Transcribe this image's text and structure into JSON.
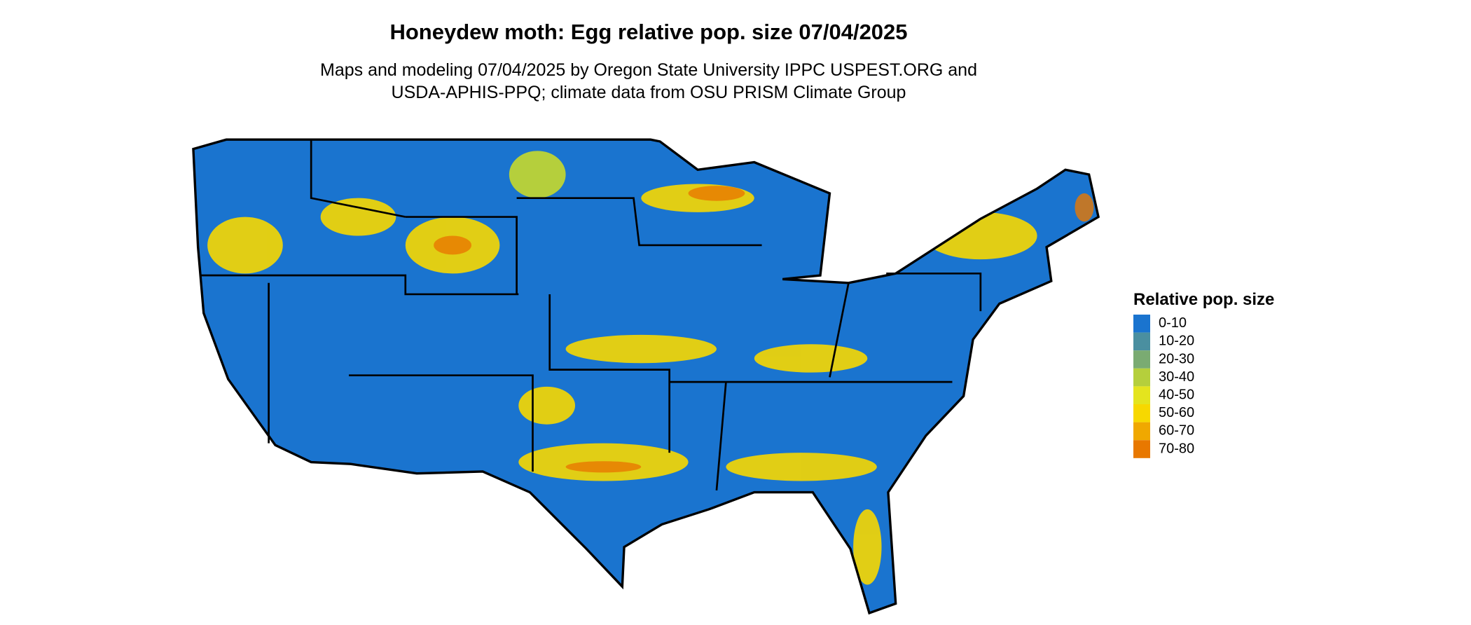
{
  "title": "Honeydew moth: Egg relative pop. size 07/04/2025",
  "subtitle": [
    "Maps and modeling 07/04/2025 by Oregon State University IPPC USPEST.ORG and",
    "USDA-APHIS-PPQ; climate data from OSU PRISM Climate Group"
  ],
  "legend": {
    "title": "Relative pop. size",
    "items": [
      {
        "label": "0-10",
        "color": "#1a74cf"
      },
      {
        "label": "10-20",
        "color": "#4a8fa0"
      },
      {
        "label": "20-30",
        "color": "#7aab72"
      },
      {
        "label": "30-40",
        "color": "#b5cf3c"
      },
      {
        "label": "40-50",
        "color": "#e4e41e"
      },
      {
        "label": "50-60",
        "color": "#f7d800"
      },
      {
        "label": "60-70",
        "color": "#f0a800"
      },
      {
        "label": "70-80",
        "color": "#e87800"
      }
    ]
  }
}
